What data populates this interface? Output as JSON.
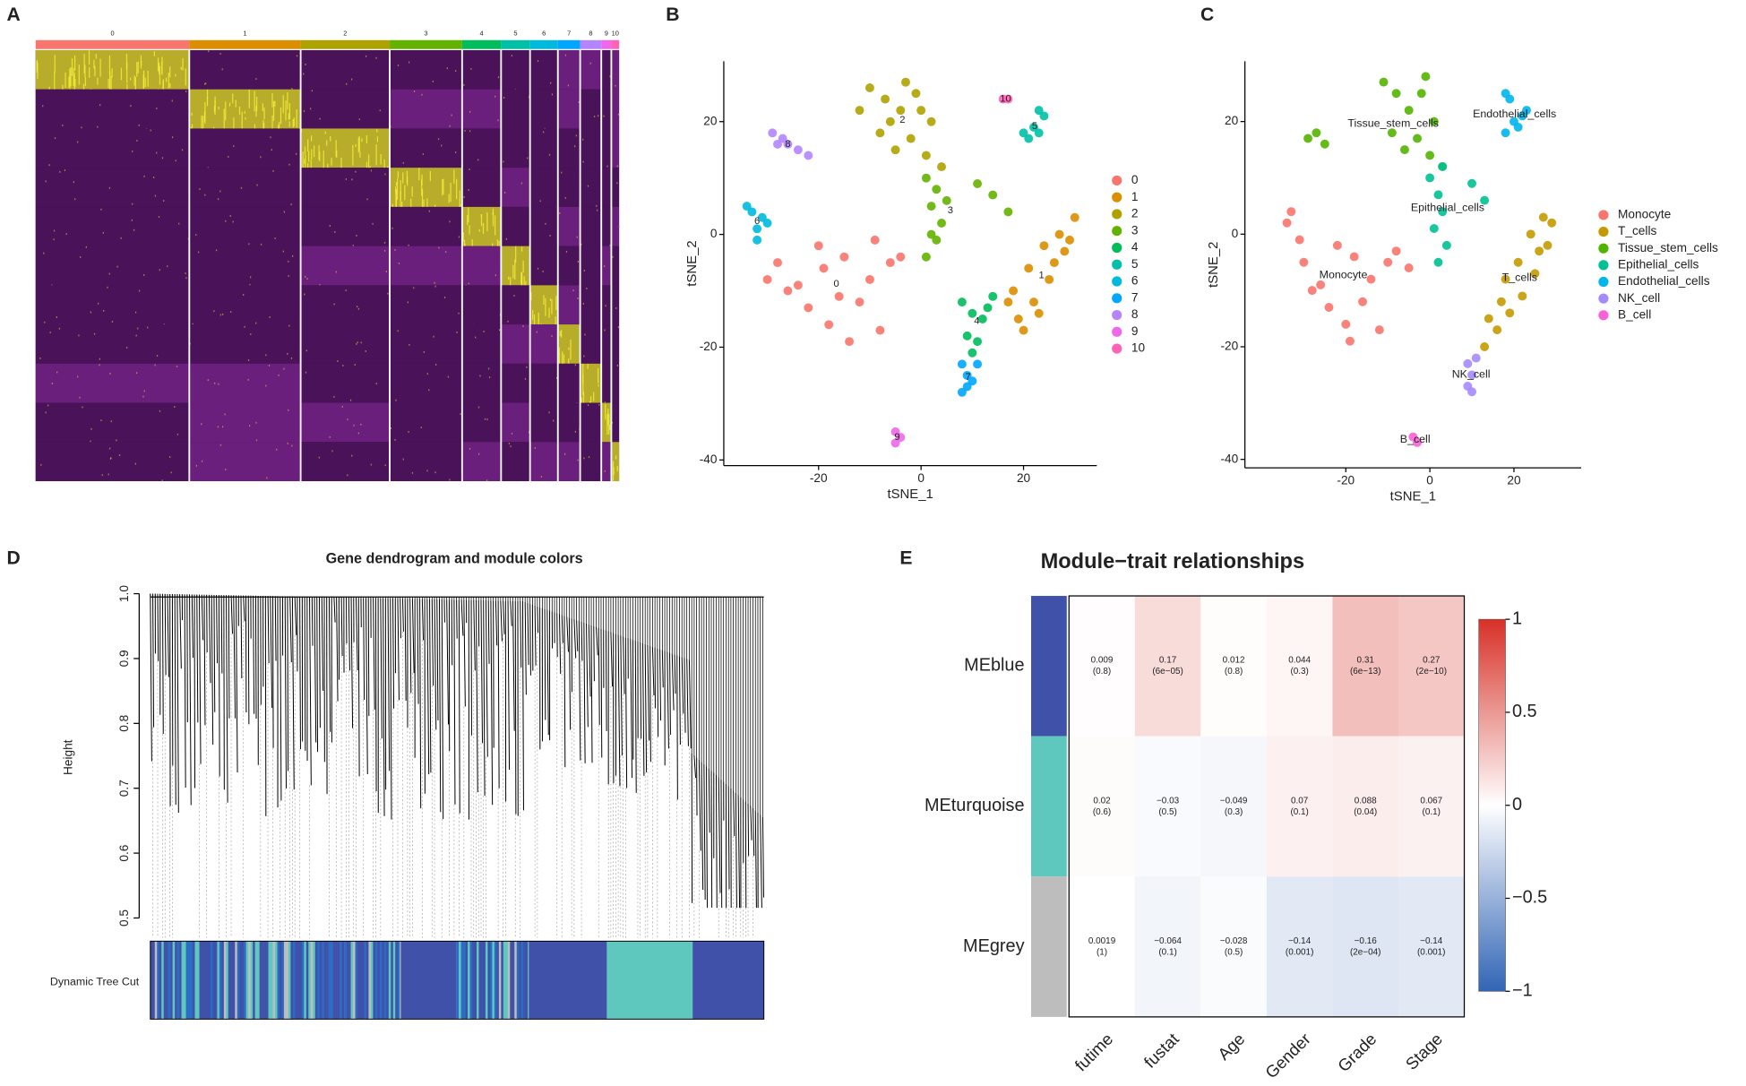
{
  "chart_data": [
    {
      "type": "cluster-heatmap",
      "panel": "A",
      "categories": [
        "0",
        "1",
        "2",
        "3",
        "4",
        "5",
        "6",
        "7",
        "8",
        "9",
        "10"
      ],
      "values": [
        138,
        100,
        80,
        65,
        35,
        26,
        25,
        20,
        19,
        9,
        7
      ],
      "colors": [
        "#F8766D",
        "#DB8E00",
        "#AEA200",
        "#64B200",
        "#00BD5C",
        "#00C1A7",
        "#00BADE",
        "#00A6FF",
        "#B385FF",
        "#EF67EB",
        "#FF63B6"
      ]
    },
    {
      "type": "scatter",
      "panel": "B",
      "xlabel": "tSNE_1",
      "ylabel": "tSNE_2",
      "xlim": [
        -38.5,
        34.3
      ],
      "ylim": [
        -41,
        30.7
      ],
      "xticks": [
        -20,
        0,
        20
      ],
      "yticks": [
        -40,
        -20,
        0,
        20
      ],
      "series": [
        {
          "name": "0",
          "color": "#F8766D",
          "x": [
            -28,
            -24,
            -20,
            -15,
            -10,
            -6,
            -22,
            -18,
            -12,
            -8,
            -26,
            -14,
            -19,
            -9,
            -16,
            -30,
            -4
          ],
          "y": [
            -5,
            -9,
            -2,
            -4,
            -8,
            -5,
            -13,
            -16,
            -12,
            -17,
            -10,
            -19,
            -6,
            -1,
            -11,
            -8,
            -4
          ]
        },
        {
          "name": "1",
          "color": "#DB8E00",
          "x": [
            19,
            22,
            25,
            28,
            21,
            24,
            27,
            30,
            18,
            23,
            26,
            20,
            29,
            17
          ],
          "y": [
            -15,
            -12,
            -8,
            -3,
            -6,
            -2,
            0,
            3,
            -10,
            -14,
            -5,
            -17,
            -1,
            -12
          ]
        },
        {
          "name": "2",
          "color": "#AEA200",
          "x": [
            -10,
            -7,
            -4,
            -1,
            2,
            -8,
            -5,
            -2,
            1,
            4,
            -6,
            -3,
            -12,
            0
          ],
          "y": [
            26,
            24,
            22,
            25,
            20,
            18,
            15,
            17,
            14,
            12,
            20,
            27,
            22,
            22
          ]
        },
        {
          "name": "3",
          "color": "#64B200",
          "x": [
            1,
            3,
            2,
            4,
            3,
            1,
            5,
            2,
            11,
            14,
            17
          ],
          "y": [
            10,
            8,
            5,
            2,
            -1,
            -4,
            6,
            0,
            9,
            7,
            4
          ]
        },
        {
          "name": "4",
          "color": "#00BD5C",
          "x": [
            8,
            10,
            12,
            9,
            11,
            13,
            10,
            14
          ],
          "y": [
            -12,
            -14,
            -15,
            -18,
            -19,
            -13,
            -21,
            -11
          ]
        },
        {
          "name": "5",
          "color": "#00C1A7",
          "x": [
            21,
            23,
            24,
            22,
            23,
            20
          ],
          "y": [
            17,
            18,
            21,
            19,
            22,
            18
          ]
        },
        {
          "name": "6",
          "color": "#00BADE",
          "x": [
            -33,
            -31,
            -32,
            -30,
            -32,
            -34
          ],
          "y": [
            4,
            3,
            1,
            2,
            -1,
            5
          ]
        },
        {
          "name": "7",
          "color": "#00A6FF",
          "x": [
            8,
            9,
            10,
            8,
            9,
            11
          ],
          "y": [
            -23,
            -25,
            -26,
            -28,
            -27,
            -23
          ]
        },
        {
          "name": "8",
          "color": "#B385FF",
          "x": [
            -29,
            -27,
            -26,
            -24,
            -22,
            -28
          ],
          "y": [
            18,
            17,
            16,
            15,
            14,
            16
          ]
        },
        {
          "name": "9",
          "color": "#EF67EB",
          "x": [
            -5,
            -4,
            -5
          ],
          "y": [
            -35,
            -36,
            -37
          ]
        },
        {
          "name": "10",
          "color": "#FF63B6",
          "x": [
            16,
            17
          ],
          "y": [
            24,
            24
          ]
        }
      ]
    },
    {
      "type": "scatter",
      "panel": "C",
      "xlabel": "tSNE_1",
      "ylabel": "tSNE_2",
      "xlim": [
        -44,
        36
      ],
      "ylim": [
        -41.5,
        30.7
      ],
      "xticks": [
        -20,
        0,
        20
      ],
      "yticks": [
        -40,
        -20,
        0,
        20
      ],
      "series": [
        {
          "name": "Monocyte",
          "color": "#F8766D",
          "x": [
            -30,
            -26,
            -22,
            -18,
            -14,
            -10,
            -24,
            -20,
            -16,
            -12,
            -28,
            -19,
            -8,
            -33,
            -34,
            -5,
            -31
          ],
          "y": [
            -5,
            -9,
            -2,
            -4,
            -8,
            -5,
            -13,
            -16,
            -12,
            -17,
            -10,
            -19,
            -3,
            4,
            2,
            -6,
            -1
          ]
        },
        {
          "name": "T_cells",
          "color": "#C49A00",
          "x": [
            13,
            16,
            19,
            22,
            25,
            28,
            18,
            21,
            24,
            27,
            14,
            17,
            29,
            26
          ],
          "y": [
            -20,
            -17,
            -14,
            -11,
            -7,
            -2,
            -8,
            -5,
            0,
            3,
            -15,
            -12,
            2,
            -3
          ]
        },
        {
          "name": "Tissue_stem_cells",
          "color": "#53B400",
          "x": [
            -11,
            -8,
            -5,
            -2,
            1,
            -9,
            -6,
            -3,
            0,
            3,
            -27,
            -25,
            -29,
            -1
          ],
          "y": [
            27,
            25,
            22,
            25,
            20,
            18,
            15,
            17,
            14,
            12,
            18,
            16,
            17,
            28
          ]
        },
        {
          "name": "Epithelial_cells",
          "color": "#00C094",
          "x": [
            0,
            2,
            3,
            1,
            4,
            2,
            3,
            10,
            13
          ],
          "y": [
            10,
            7,
            4,
            1,
            -2,
            -5,
            12,
            9,
            6
          ]
        },
        {
          "name": "Endothelial_cells",
          "color": "#00B6EB",
          "x": [
            18,
            20,
            22,
            21,
            23,
            18,
            19
          ],
          "y": [
            18,
            20,
            21,
            19,
            22,
            25,
            24
          ]
        },
        {
          "name": "NK_cell",
          "color": "#A58AFF",
          "x": [
            9,
            10,
            9,
            10,
            11
          ],
          "y": [
            -23,
            -25,
            -27,
            -28,
            -22
          ]
        },
        {
          "name": "B_cell",
          "color": "#FB61D7",
          "x": [
            -4,
            -3
          ],
          "y": [
            -36,
            -37
          ]
        }
      ]
    },
    {
      "type": "dendrogram",
      "panel": "D",
      "title": "Gene dendrogram and module colors",
      "ylabel": "Height",
      "ylim": [
        0.49,
        1.0
      ],
      "yticks": [
        0.5,
        0.6,
        0.7,
        0.8,
        0.9,
        {
          "value": 1,
          "label": "1.0"
        }
      ],
      "track_label": "Dynamic Tree Cut"
    },
    {
      "type": "correlation-heatmap",
      "panel": "E",
      "title": "Module−trait relationships",
      "rows": [
        "MEblue",
        "MEturquoise",
        "MEgrey"
      ],
      "row_colors": [
        "#3F51A8",
        "#5EC8BF",
        "#BDBDBD"
      ],
      "columns": [
        "futime",
        "fustat",
        "Age",
        "Gender",
        "Grade",
        "Stage"
      ],
      "values": [
        [
          0.009,
          0.17,
          0.012,
          0.044,
          0.31,
          0.27
        ],
        [
          0.02,
          -0.03,
          -0.049,
          0.07,
          0.088,
          0.067
        ],
        [
          0.0019,
          -0.064,
          -0.028,
          -0.14,
          -0.16,
          -0.14
        ]
      ],
      "value_labels": [
        [
          "0.009",
          "0.17",
          "0.012",
          "0.044",
          "0.31",
          "0.27"
        ],
        [
          "0.02",
          "−0.03",
          "−0.049",
          "0.07",
          "0.088",
          "0.067"
        ],
        [
          "0.0019",
          "−0.064",
          "−0.028",
          "−0.14",
          "−0.16",
          "−0.14"
        ]
      ],
      "p_labels": [
        [
          "(0.8)",
          "(6e−05)",
          "(0.8)",
          "(0.3)",
          "(6e−13)",
          "(2e−10)"
        ],
        [
          "(0.6)",
          "(0.5)",
          "(0.3)",
          "(0.1)",
          "(0.04)",
          "(0.1)"
        ],
        [
          "(1)",
          "(0.1)",
          "(0.5)",
          "(0.001)",
          "(2e−04)",
          "(0.001)"
        ]
      ],
      "cmap": [
        "#3165B5",
        "#FFFFFF",
        "#D73027"
      ],
      "clim": [
        -1,
        1
      ],
      "cticks": [
        {
          "value": -1,
          "label": "−1"
        },
        {
          "value": -0.5,
          "label": "−0.5"
        },
        0,
        0.5,
        1
      ]
    }
  ]
}
